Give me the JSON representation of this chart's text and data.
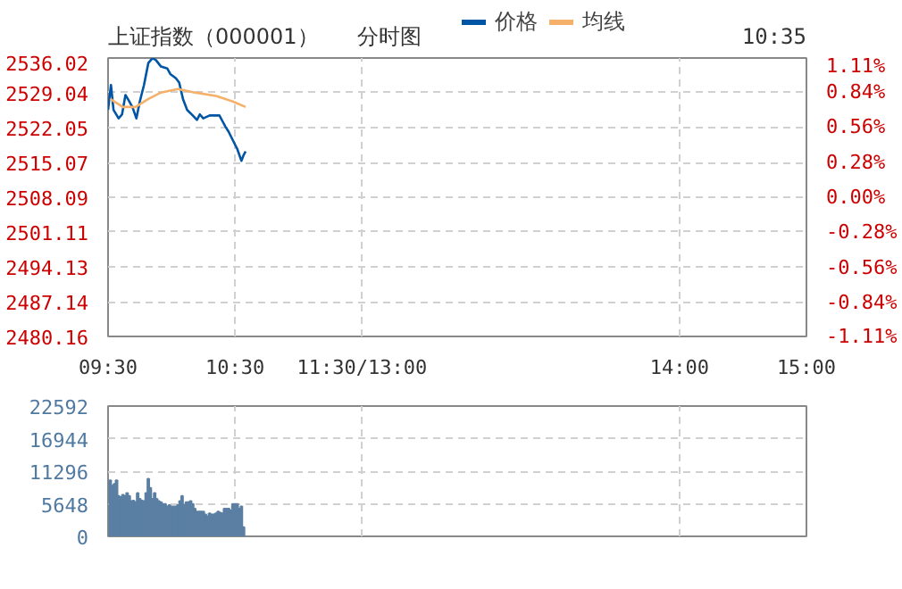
{
  "chart_data": [
    {
      "type": "line",
      "title": "上证指数（000001）",
      "subtitle": "分时图",
      "annotations": [
        "10:35"
      ],
      "legend": "top",
      "grid": true,
      "xlim": [
        9.5,
        15
      ],
      "xticks": [
        {
          "value": 9.5,
          "label": "09:30"
        },
        {
          "value": 10.5,
          "label": "10:30"
        },
        {
          "value": 11.5,
          "label": "11:30/13:00"
        },
        {
          "value": 14,
          "label": "14:00"
        },
        {
          "value": 15,
          "label": "15:00"
        }
      ],
      "ylim": [
        2480.16,
        2536.02
      ],
      "yticks": [
        2480.16,
        2487.14,
        2494.13,
        2501.11,
        2508.09,
        2515.07,
        2522.05,
        2529.04,
        2536.02
      ],
      "y2lim": [
        -1.11,
        1.11
      ],
      "y2ticks": [
        {
          "value": -1.11,
          "label": "-1.11%"
        },
        {
          "value": -0.84,
          "label": "-0.84%"
        },
        {
          "value": -0.56,
          "label": "-0.56%"
        },
        {
          "value": -0.28,
          "label": "-0.28%"
        },
        {
          "value": 0,
          "label": "0.00%"
        },
        {
          "value": 0.28,
          "label": "0.28%"
        },
        {
          "value": 0.56,
          "label": "0.56%"
        },
        {
          "value": 0.84,
          "label": "0.84%"
        },
        {
          "value": 1.11,
          "label": "1.11%"
        }
      ],
      "series": [
        {
          "name": "价格",
          "color": "#0055a5",
          "x": [
            9.5,
            9.523,
            9.543,
            9.583,
            9.61,
            9.637,
            9.667,
            9.693,
            9.723,
            9.75,
            9.783,
            9.817,
            9.85,
            9.877,
            9.917,
            9.967,
            9.99,
            10.033,
            10.06,
            10.09,
            10.123,
            10.167,
            10.2,
            10.223,
            10.25,
            10.3,
            10.377,
            10.4,
            10.423,
            10.45,
            10.483,
            10.517,
            10.55,
            10.567,
            10.583
          ],
          "values": [
            2525.6,
            2530.6,
            2525.6,
            2523.9,
            2524.7,
            2528.6,
            2527.3,
            2526.1,
            2523.9,
            2527.3,
            2530.6,
            2535.0,
            2536.0,
            2535.6,
            2534.3,
            2533.9,
            2532.8,
            2532.0,
            2531.1,
            2527.8,
            2525.6,
            2524.5,
            2523.6,
            2524.7,
            2523.9,
            2524.5,
            2524.5,
            2523.4,
            2522.3,
            2521.2,
            2519.5,
            2517.8,
            2515.4,
            2516.5,
            2517.3
          ]
        },
        {
          "name": "均线",
          "color": "#f5b06a",
          "x": [
            9.517,
            9.617,
            9.717,
            9.817,
            9.917,
            10.05,
            10.183,
            10.35,
            10.483,
            10.583
          ],
          "values": [
            2527.8,
            2526.2,
            2526.2,
            2527.8,
            2529.1,
            2529.8,
            2529.1,
            2528.4,
            2527.3,
            2526.2
          ]
        }
      ]
    },
    {
      "type": "bar",
      "color": "#5a7fa3",
      "grid": true,
      "tick_labels": "y",
      "xlim": [
        9.5,
        15
      ],
      "xticks": [
        9.5,
        10.5,
        11.5,
        14,
        15
      ],
      "ylim": [
        0,
        22592
      ],
      "yticks": [
        0,
        5648,
        11296,
        16944,
        22592
      ],
      "x": [
        9.517,
        9.533,
        9.55,
        9.567,
        9.583,
        9.6,
        9.617,
        9.633,
        9.65,
        9.667,
        9.683,
        9.7,
        9.717,
        9.733,
        9.75,
        9.767,
        9.783,
        9.8,
        9.817,
        9.833,
        9.85,
        9.867,
        9.883,
        9.9,
        9.917,
        9.933,
        9.95,
        9.967,
        9.983,
        10,
        10.017,
        10.033,
        10.05,
        10.067,
        10.083,
        10.1,
        10.117,
        10.133,
        10.15,
        10.167,
        10.183,
        10.2,
        10.217,
        10.233,
        10.25,
        10.267,
        10.283,
        10.3,
        10.317,
        10.333,
        10.35,
        10.367,
        10.383,
        10.4,
        10.417,
        10.433,
        10.45,
        10.467,
        10.483,
        10.5,
        10.517,
        10.533,
        10.55,
        10.567
      ],
      "values": [
        9700,
        8800,
        9100,
        9700,
        7000,
        6800,
        7200,
        7000,
        7500,
        7000,
        6100,
        6200,
        5900,
        7500,
        6500,
        6200,
        6100,
        7500,
        10000,
        8400,
        6500,
        7500,
        6500,
        6100,
        5900,
        5600,
        5600,
        5200,
        5400,
        5200,
        5200,
        5200,
        5400,
        6100,
        7000,
        5400,
        5900,
        5900,
        6100,
        5600,
        4800,
        4300,
        4300,
        4300,
        4300,
        3800,
        3500,
        4000,
        3800,
        3800,
        4000,
        4300,
        4100,
        4000,
        4800,
        4800,
        4800,
        4500,
        5600,
        5600,
        5600,
        4800,
        5200,
        1600
      ]
    }
  ]
}
